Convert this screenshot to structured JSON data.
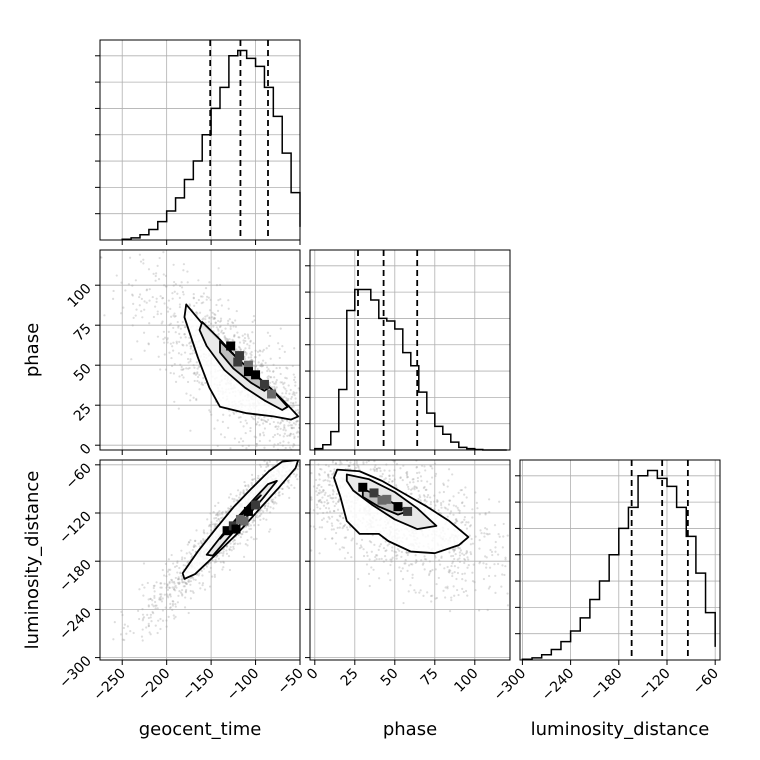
{
  "chart_data": {
    "type": "corner",
    "grid": true,
    "colors": {
      "main": "#000000",
      "scatter": "#9e9e9e",
      "grid": "#b0b0b0"
    },
    "parameters": [
      {
        "name": "geocent_time",
        "label": "geocent_time",
        "range": [
          -275,
          -50
        ],
        "ticks": [
          -250,
          -200,
          -150,
          -100,
          -50
        ],
        "tick_labels": [
          "−250",
          "−200",
          "−150",
          "−100",
          "−50"
        ],
        "quantiles": [
          -151,
          -117,
          -86
        ]
      },
      {
        "name": "phase",
        "label": "phase",
        "range": [
          -3,
          122
        ],
        "ticks": [
          0,
          25,
          50,
          75,
          100
        ],
        "tick_labels": [
          "0",
          "25",
          "50",
          "75",
          "100"
        ],
        "quantiles": [
          27,
          43,
          64
        ]
      },
      {
        "name": "luminosity_distance",
        "label": "luminosity_distance",
        "range": [
          -303,
          -54
        ],
        "ticks": [
          -300,
          -240,
          -180,
          -120,
          -60
        ],
        "tick_labels": [
          "−300",
          "−240",
          "−180",
          "−120",
          "−60"
        ],
        "quantiles": [
          -164,
          -126,
          -94
        ]
      }
    ],
    "histograms": [
      {
        "parameter": "geocent_time",
        "bin_edges": [
          -250,
          -240,
          -230,
          -220,
          -210,
          -200,
          -190,
          -180,
          -170,
          -160,
          -150,
          -140,
          -130,
          -120,
          -110,
          -100,
          -90,
          -80,
          -70,
          -60,
          -50
        ],
        "counts": [
          0.3,
          0.8,
          2,
          4,
          7,
          11,
          16,
          23,
          30,
          40,
          50,
          58,
          70,
          72,
          69,
          66,
          58,
          47,
          33,
          18,
          5
        ]
      },
      {
        "parameter": "phase",
        "bin_edges": [
          0,
          5,
          10,
          15,
          20,
          25,
          30,
          35,
          40,
          45,
          50,
          55,
          60,
          65,
          70,
          75,
          80,
          85,
          90,
          95,
          100,
          105,
          110,
          115,
          120
        ],
        "counts": [
          0.5,
          2,
          7,
          23,
          53,
          61,
          61,
          57,
          50,
          49,
          46,
          37,
          32,
          22,
          14,
          9,
          6,
          3,
          1,
          0.5,
          0.2,
          0,
          0,
          0
        ]
      },
      {
        "parameter": "luminosity_distance",
        "bin_edges": [
          -300,
          -288,
          -276,
          -264,
          -252,
          -240,
          -228,
          -216,
          -204,
          -192,
          -180,
          -168,
          -156,
          -144,
          -132,
          -120,
          -108,
          -96,
          -84,
          -72,
          -60
        ],
        "counts": [
          0.3,
          0.8,
          2,
          4,
          7,
          11,
          16,
          23,
          30,
          40,
          50,
          58,
          70,
          72,
          69,
          66,
          58,
          47,
          33,
          18,
          5
        ]
      }
    ],
    "hist_ylim": [
      0,
      76
    ],
    "pairs": [
      {
        "x": "geocent_time",
        "y": "phase",
        "contours": [
          [
            [
              -178,
              88
            ],
            [
              -160,
              76
            ],
            [
              -138,
              64
            ],
            [
              -116,
              52
            ],
            [
              -97,
              42
            ],
            [
              -80,
              34
            ],
            [
              -62,
              24
            ],
            [
              -52,
              18
            ],
            [
              -60,
              16
            ],
            [
              -80,
              18
            ],
            [
              -110,
              20
            ],
            [
              -140,
              24
            ],
            [
              -152,
              36
            ],
            [
              -165,
              55
            ],
            [
              -180,
              80
            ]
          ],
          [
            [
              -160,
              77
            ],
            [
              -140,
              66
            ],
            [
              -120,
              54
            ],
            [
              -100,
              44
            ],
            [
              -82,
              35
            ],
            [
              -64,
              24
            ],
            [
              -70,
              22
            ],
            [
              -90,
              28
            ],
            [
              -112,
              36
            ],
            [
              -135,
              47
            ],
            [
              -155,
              62
            ],
            [
              -163,
              72
            ]
          ],
          [
            [
              -140,
              65
            ],
            [
              -120,
              54
            ],
            [
              -100,
              44
            ],
            [
              -85,
              36
            ],
            [
              -90,
              34
            ],
            [
              -105,
              39
            ],
            [
              -125,
              48
            ],
            [
              -140,
              58
            ]
          ]
        ],
        "density_peaks": [
          [
            -128,
            62
          ],
          [
            -118,
            56
          ],
          [
            -108,
            50
          ],
          [
            -100,
            44
          ],
          [
            -90,
            38
          ],
          [
            -82,
            32
          ],
          [
            -108,
            46
          ],
          [
            -120,
            52
          ]
        ]
      },
      {
        "x": "geocent_time",
        "y": "luminosity_distance",
        "contours": [
          [
            [
              -182,
              -195
            ],
            [
              -165,
              -168
            ],
            [
              -145,
              -140
            ],
            [
              -125,
              -113
            ],
            [
              -105,
              -90
            ],
            [
              -85,
              -68
            ],
            [
              -70,
              -56
            ],
            [
              -52,
              -54
            ],
            [
              -55,
              -64
            ],
            [
              -75,
              -90
            ],
            [
              -98,
              -118
            ],
            [
              -120,
              -145
            ],
            [
              -145,
              -172
            ],
            [
              -168,
              -196
            ],
            [
              -180,
              -202
            ]
          ],
          [
            [
              -155,
              -172
            ],
            [
              -138,
              -148
            ],
            [
              -120,
              -125
            ],
            [
              -102,
              -103
            ],
            [
              -86,
              -84
            ],
            [
              -76,
              -80
            ],
            [
              -92,
              -102
            ],
            [
              -110,
              -125
            ],
            [
              -130,
              -150
            ],
            [
              -148,
              -173
            ]
          ],
          [
            [
              -140,
              -152
            ],
            [
              -124,
              -133
            ],
            [
              -108,
              -114
            ],
            [
              -94,
              -98
            ],
            [
              -100,
              -104
            ],
            [
              -115,
              -121
            ],
            [
              -132,
              -142
            ]
          ]
        ],
        "density_peaks": [
          [
            -132,
            -142
          ],
          [
            -125,
            -136
          ],
          [
            -117,
            -128
          ],
          [
            -108,
            -118
          ],
          [
            -100,
            -110
          ],
          [
            -113,
            -130
          ],
          [
            -122,
            -140
          ]
        ]
      },
      {
        "x": "phase",
        "y": "luminosity_distance",
        "contours": [
          [
            [
              14,
              -66
            ],
            [
              28,
              -68
            ],
            [
              42,
              -80
            ],
            [
              56,
              -96
            ],
            [
              70,
              -112
            ],
            [
              84,
              -130
            ],
            [
              96,
              -150
            ],
            [
              90,
              -160
            ],
            [
              75,
              -170
            ],
            [
              60,
              -168
            ],
            [
              46,
              -155
            ],
            [
              40,
              -146
            ],
            [
              28,
              -146
            ],
            [
              20,
              -130
            ],
            [
              16,
              -100
            ],
            [
              12,
              -76
            ]
          ],
          [
            [
              20,
              -72
            ],
            [
              34,
              -78
            ],
            [
              50,
              -94
            ],
            [
              64,
              -114
            ],
            [
              76,
              -136
            ],
            [
              64,
              -140
            ],
            [
              50,
              -128
            ],
            [
              36,
              -110
            ],
            [
              24,
              -92
            ],
            [
              20,
              -80
            ]
          ],
          [
            [
              30,
              -90
            ],
            [
              44,
              -102
            ],
            [
              58,
              -118
            ],
            [
              52,
              -122
            ],
            [
              40,
              -112
            ],
            [
              30,
              -100
            ]
          ]
        ],
        "density_peaks": [
          [
            30,
            -88
          ],
          [
            37,
            -95
          ],
          [
            45,
            -103
          ],
          [
            52,
            -112
          ],
          [
            58,
            -118
          ],
          [
            42,
            -104
          ]
        ]
      }
    ]
  }
}
